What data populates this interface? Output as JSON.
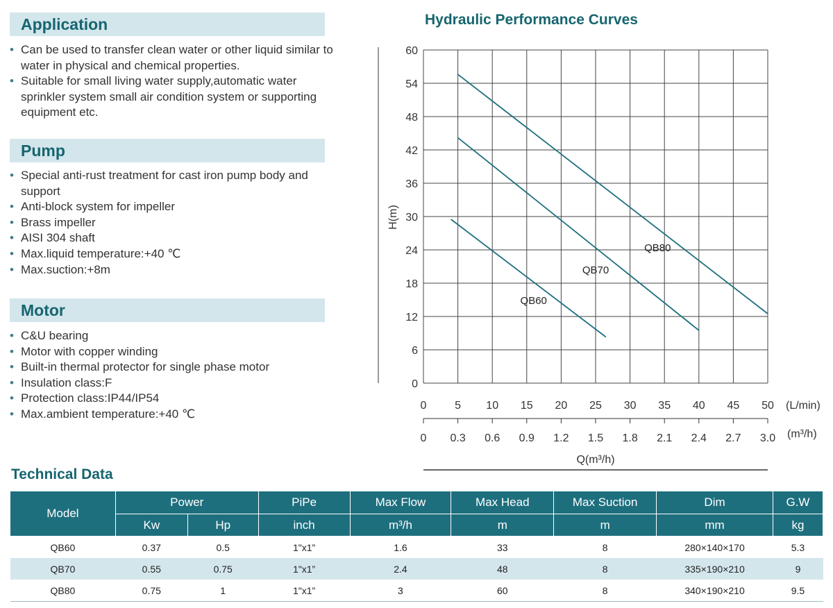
{
  "application": {
    "title": "Application",
    "items": [
      "Can be used to transfer clean water or other liquid similar to water in physical and chemical properties.",
      "Suitable for small living water supply,automatic water sprinkler system small air condition system or supporting equipment etc."
    ]
  },
  "pump": {
    "title": "Pump",
    "items": [
      "Special anti-rust treatment for cast iron pump body and support",
      "Anti-block system for impeller",
      "Brass impeller",
      "AISI 304 shaft",
      "Max.liquid temperature:+40 ℃",
      "Max.suction:+8m"
    ]
  },
  "motor": {
    "title": "Motor",
    "items": [
      "C&U bearing",
      "Motor with copper winding",
      "Built-in thermal protector for single phase motor",
      "Insulation class:F",
      "Protection class:IP44/IP54",
      "Max.ambient temperature:+40 ℃"
    ]
  },
  "chart_data": {
    "type": "line",
    "title": "Hydraulic Performance Curves",
    "ylabel": "H(m)",
    "xlabel": "Q(m³/h)",
    "ylim": [
      0,
      60
    ],
    "xlim": [
      0,
      50
    ],
    "yticks": [
      "0",
      "6",
      "12",
      "18",
      "24",
      "30",
      "36",
      "42",
      "48",
      "54",
      "60"
    ],
    "xticks_lmin": [
      "0",
      "5",
      "10",
      "15",
      "20",
      "25",
      "30",
      "35",
      "40",
      "45",
      "50"
    ],
    "xticks_m3h": [
      "0",
      "0.3",
      "0.6",
      "0.9",
      "1.2",
      "1.5",
      "1.8",
      "2.1",
      "2.4",
      "2.7",
      "3.0"
    ],
    "unit_lmin": "(L/min)",
    "unit_m3h": "(m³/h)",
    "grid": true,
    "line_color": "#1e6f7e",
    "series": [
      {
        "name": "QB60",
        "x": [
          4,
          26.5
        ],
        "y": [
          29.5,
          8.3
        ],
        "label_at": [
          16,
          15
        ]
      },
      {
        "name": "QB70",
        "x": [
          5,
          40
        ],
        "y": [
          44.2,
          9.5
        ],
        "label_at": [
          25,
          20.5
        ]
      },
      {
        "name": "QB80",
        "x": [
          5,
          50
        ],
        "y": [
          55.6,
          12.5
        ],
        "label_at": [
          34,
          24.5
        ]
      }
    ]
  },
  "technical": {
    "title": "Technical Data",
    "headers": {
      "model": "Model",
      "power": "Power",
      "pipe": "PiPe",
      "max_flow": "Max Flow",
      "max_head": "Max Head",
      "max_suction": "Max Suction",
      "dim": "Dim",
      "gw": "G.W"
    },
    "units": {
      "kw": "Kw",
      "hp": "Hp",
      "pipe": "inch",
      "max_flow": "m³/h",
      "max_head": "m",
      "max_suction": "m",
      "dim": "mm",
      "gw": "kg"
    },
    "rows": [
      [
        "QB60",
        "0.37",
        "0.5",
        "1\"x1”",
        "1.6",
        "33",
        "8",
        "280×140×170",
        "5.3"
      ],
      [
        "QB70",
        "0.55",
        "0.75",
        "1\"x1”",
        "2.4",
        "48",
        "8",
        "335×190×210",
        "9"
      ],
      [
        "QB80",
        "0.75",
        "1",
        "1\"x1”",
        "3",
        "60",
        "8",
        "340×190×210",
        "9.5"
      ]
    ]
  }
}
